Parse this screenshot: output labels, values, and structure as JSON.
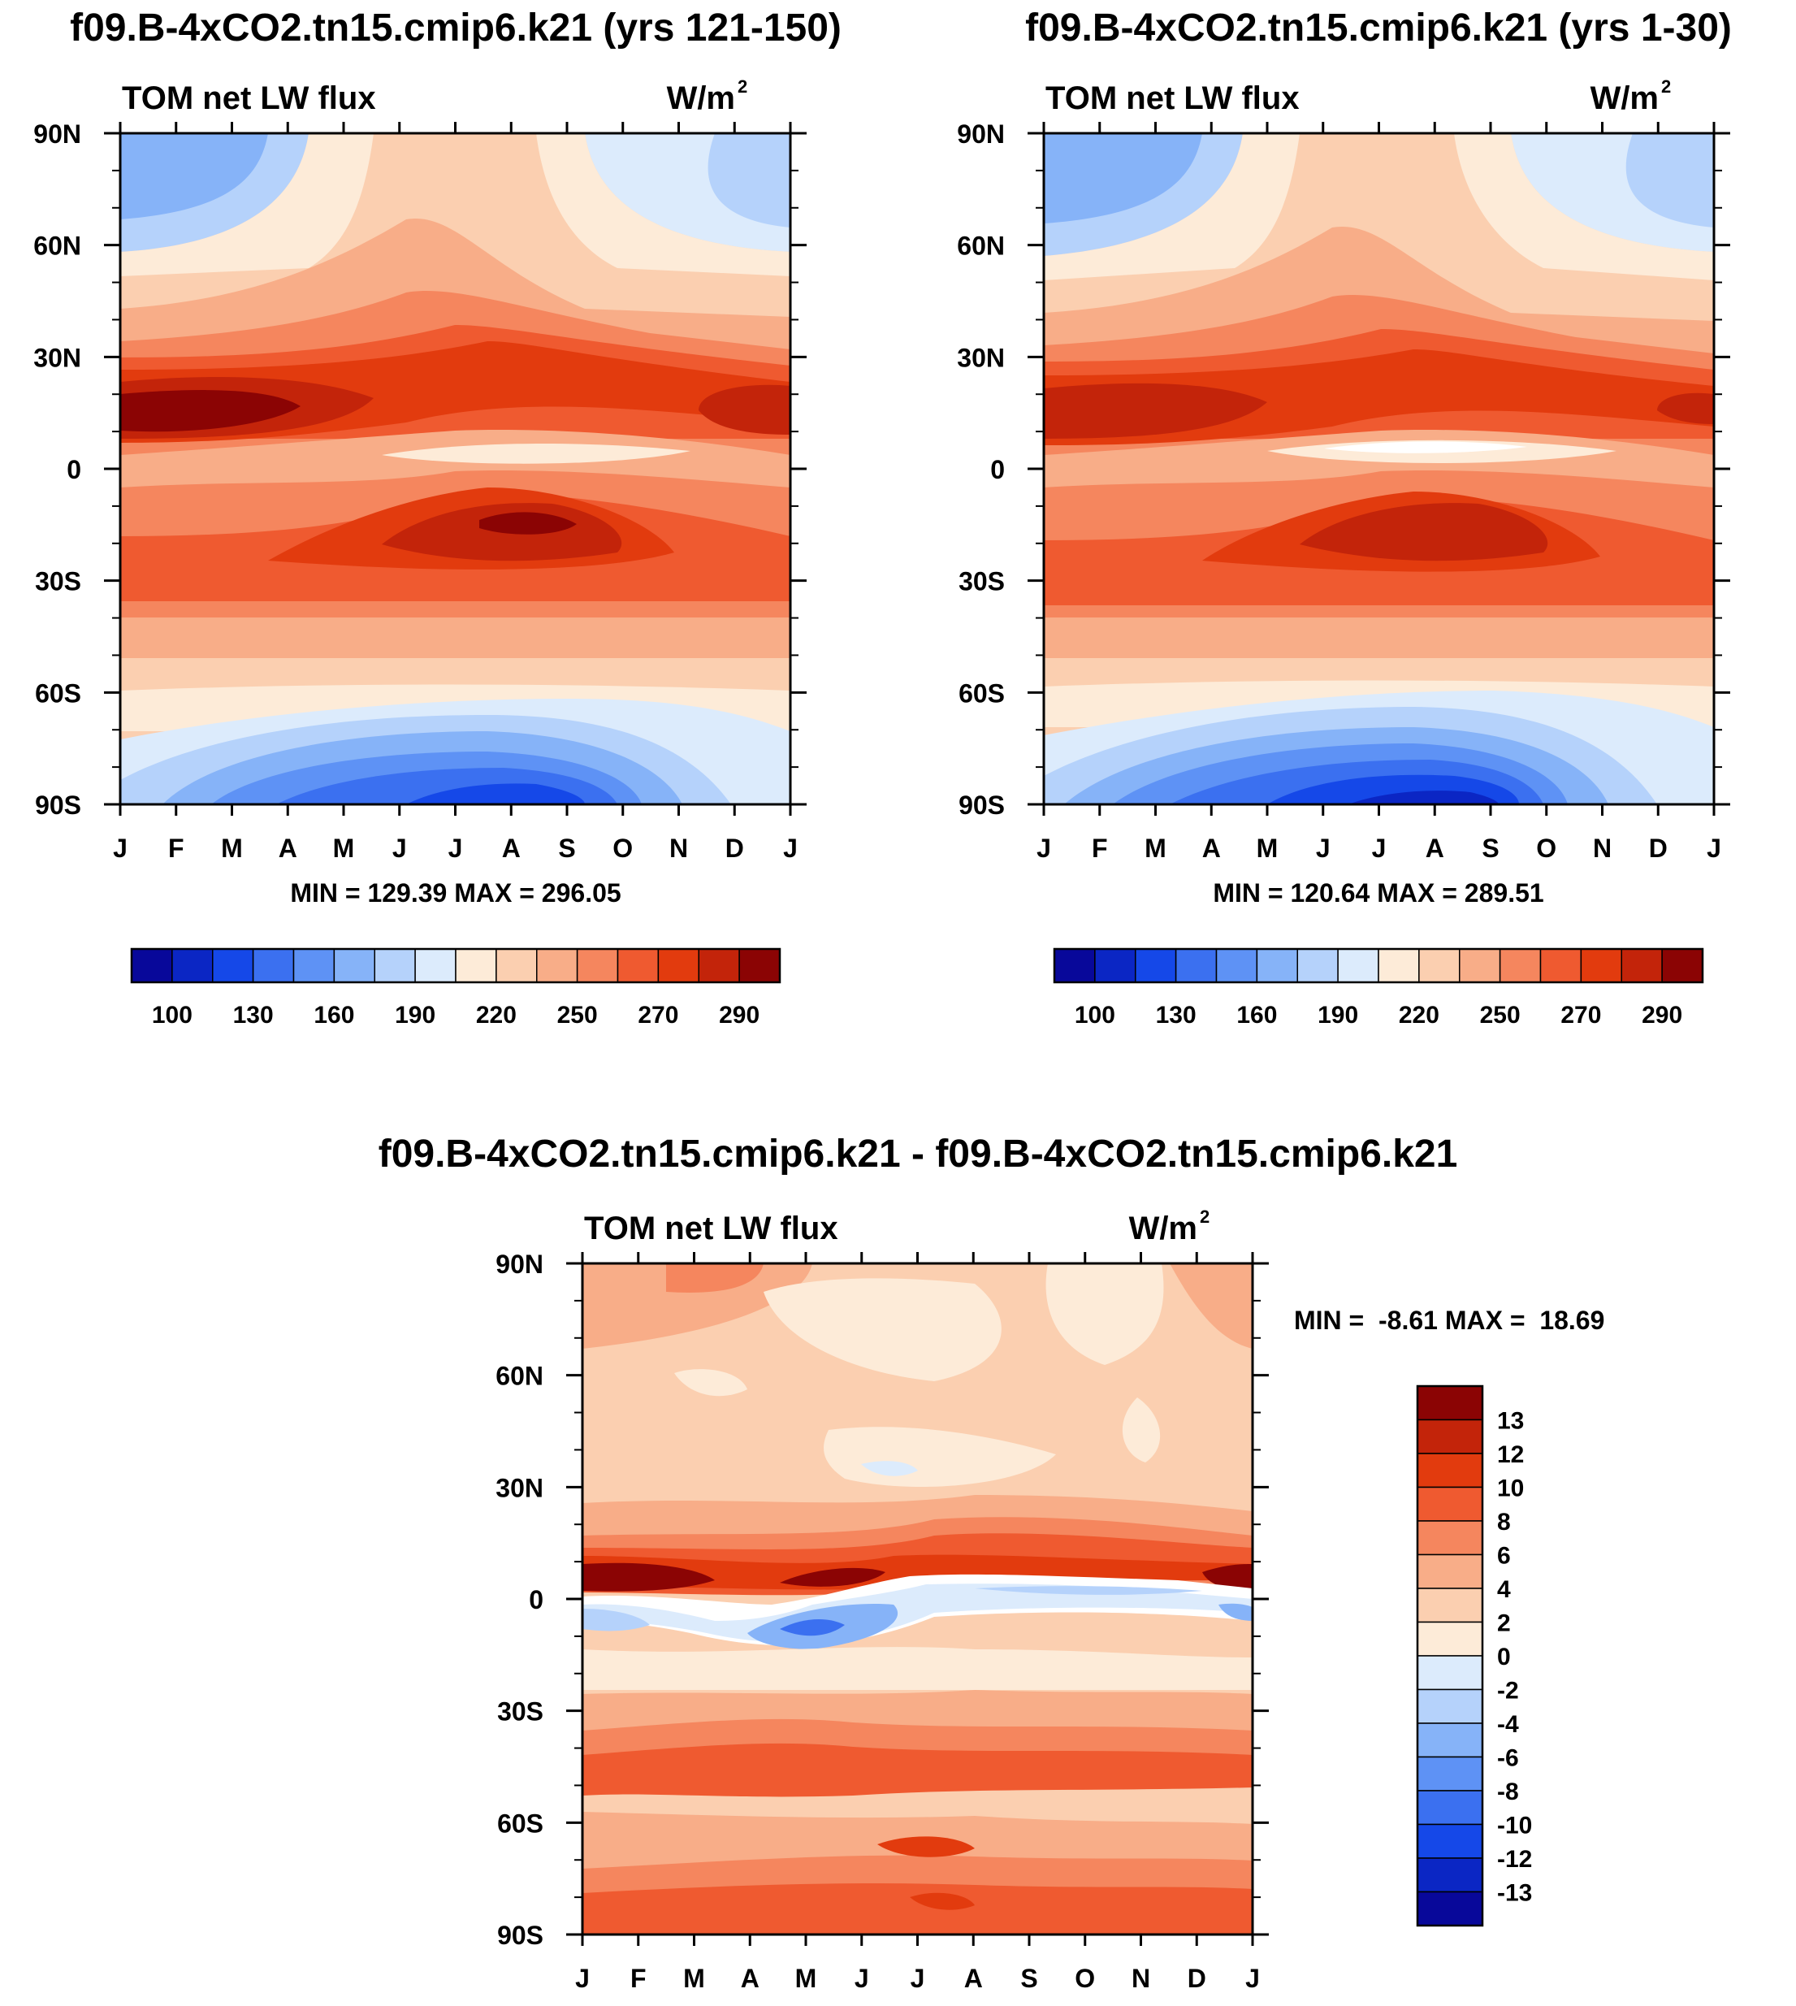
{
  "chart_data": [
    {
      "type": "heatmap",
      "id": "left",
      "title": "f09.B-4xCO2.tn15.cmip6.k21 (yrs 121-150)",
      "subtitle_left": "TOM net LW flux",
      "units_base": "W/m",
      "units_exp": "2",
      "x_ticks": [
        "J",
        "F",
        "M",
        "A",
        "M",
        "J",
        "J",
        "A",
        "S",
        "O",
        "N",
        "D",
        "J"
      ],
      "y_ticks": [
        "90N",
        "60N",
        "30N",
        "0",
        "30S",
        "60S",
        "90S"
      ],
      "stats": "MIN = 129.39 MAX = 296.05",
      "levels": [
        100,
        110,
        120,
        130,
        140,
        150,
        160,
        170,
        180,
        190,
        200,
        210,
        220,
        230,
        240,
        250,
        260,
        270,
        280,
        290
      ],
      "colorbar_labels": [
        "100",
        "130",
        "160",
        "190",
        "220",
        "250",
        "270",
        "290"
      ],
      "value_range": [
        129.39,
        296.05
      ]
    },
    {
      "type": "heatmap",
      "id": "right",
      "title": "f09.B-4xCO2.tn15.cmip6.k21 (yrs 1-30)",
      "subtitle_left": "TOM net LW flux",
      "units_base": "W/m",
      "units_exp": "2",
      "x_ticks": [
        "J",
        "F",
        "M",
        "A",
        "M",
        "J",
        "J",
        "A",
        "S",
        "O",
        "N",
        "D",
        "J"
      ],
      "y_ticks": [
        "90N",
        "60N",
        "30N",
        "0",
        "30S",
        "60S",
        "90S"
      ],
      "stats": "MIN = 120.64 MAX = 289.51",
      "colorbar_labels": [
        "100",
        "130",
        "160",
        "190",
        "220",
        "250",
        "270",
        "290"
      ],
      "value_range": [
        120.64,
        289.51
      ]
    },
    {
      "type": "heatmap",
      "id": "diff",
      "title": "f09.B-4xCO2.tn15.cmip6.k21 - f09.B-4xCO2.tn15.cmip6.k21",
      "subtitle_left": "TOM net LW flux",
      "units_base": "W/m",
      "units_exp": "2",
      "x_ticks": [
        "J",
        "F",
        "M",
        "A",
        "M",
        "J",
        "J",
        "A",
        "S",
        "O",
        "N",
        "D",
        "J"
      ],
      "y_ticks": [
        "90N",
        "60N",
        "30N",
        "0",
        "30S",
        "60S",
        "90S"
      ],
      "stats": "MIN =  -8.61 MAX =  18.69",
      "colorbar_labels": [
        "13",
        "12",
        "10",
        "8",
        "6",
        "4",
        "2",
        "0",
        "-2",
        "-4",
        "-6",
        "-8",
        "-10",
        "-12",
        "-13"
      ],
      "value_range": [
        -8.61,
        18.69
      ]
    }
  ],
  "colors": {
    "palette": [
      "#08089a",
      "#0b26c4",
      "#1548e8",
      "#3b70f0",
      "#5e92f5",
      "#86b3f8",
      "#b5d2fb",
      "#dcebfc",
      "#fdebd8",
      "#fbcfb0",
      "#f8ad88",
      "#f5865e",
      "#ef5a30",
      "#e23b0e",
      "#c3240a",
      "#8b0404"
    ]
  }
}
